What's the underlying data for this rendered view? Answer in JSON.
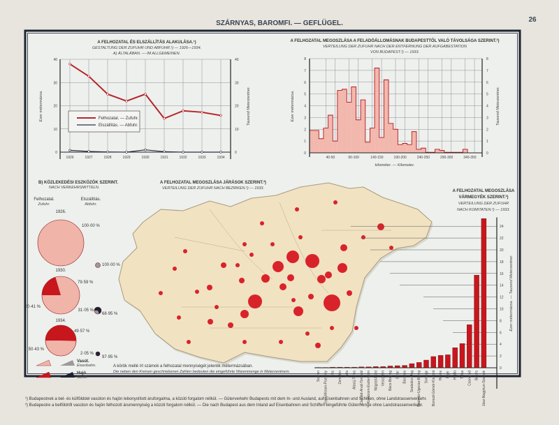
{
  "header": {
    "title": "SZÁRNYAS, BAROMFI. — GEFLÜGEL.",
    "page_number": "26"
  },
  "units": {
    "hu": "Ezer métermázsa.",
    "de": "Tausend Meterzentner."
  },
  "chart_data": [
    {
      "type": "line",
      "title": "A FELHOZATAL ÉS ELSZÁLLÍTÁS ALAKULÁSA.¹)",
      "subtitle": "GESTALTUNG DER ZUFUHR UND ABFUHR.¹) — 1926—1934.",
      "subtitle2": "A) ÁLTALÁBAN. — IM ALLGEMEINEN.",
      "x": [
        "1926",
        "1927",
        "1928",
        "1929",
        "1930",
        "1931",
        "1932",
        "1933",
        "1934"
      ],
      "yticks": [
        "0",
        "10",
        "20",
        "30",
        "40"
      ],
      "ylim": [
        0,
        40
      ],
      "ylabel": "Ezer métermázsa.",
      "ylabel_right": "Tausend Meterzentner.",
      "grid": true,
      "legend": "center-left",
      "series": [
        {
          "name": "Felhozatal. — Zufuhr.",
          "color": "#b5262a",
          "values": [
            38,
            32.7,
            25,
            22,
            25,
            14.5,
            17.8,
            17.2,
            15.8
          ]
        },
        {
          "name": "Elszállítás. — Abfuhr.",
          "color": "#2b3242",
          "values": [
            0.8,
            0.3,
            0.1,
            0,
            1.0,
            0.2,
            0,
            0,
            0
          ]
        }
      ]
    },
    {
      "type": "bar",
      "title": "A FELHOZATAL MEGOSZLÁSA A FELADÓÁLLOMÁSNAK BUDAPESTTŐL VALÓ TÁVOLSÁGA SZERINT.²)",
      "subtitle": "VERTEILUNG DER ZUFUHR NACH DER ENTFERNUNG DER AUFGABESTATION",
      "subtitle2": "VON BUDAPEST.²) — 1933.",
      "xlabel": "kilométer. — Kilometer.",
      "xticks": [
        "40-50",
        "90-100",
        "140-150",
        "190-200",
        "240-250",
        "290-300",
        "340-350"
      ],
      "bin_km": 10,
      "yticks": [
        "0",
        "1",
        "2",
        "3",
        "4",
        "5",
        "6",
        "7",
        "8"
      ],
      "ylim": [
        0,
        8
      ],
      "ylabel": "Ezer métermázsa.",
      "ylabel_right": "Tausend Meterzentner.",
      "values": [
        1.9,
        1.9,
        1.2,
        2.1,
        3.2,
        1.0,
        5.3,
        5.4,
        4.3,
        5.6,
        2.8,
        4.5,
        0.9,
        2.1,
        7.2,
        1.3,
        6.2,
        2.5,
        2.0,
        0.7,
        0.8,
        0.7,
        1.8,
        0.3,
        0.4,
        0.05,
        0.05,
        0.3,
        0.2,
        0.05,
        0.05,
        0.05,
        0.05,
        0.3,
        0
      ]
    },
    {
      "type": "pie",
      "title": "B) KÖZLEKEDÉSI ESZKÖZÖK SZERINT.",
      "subtitle": "NACH VERKEHRSMITTELN.",
      "columns": [
        {
          "hu": "Felhozatal.",
          "de": "Zufuhr."
        },
        {
          "hu": "Elszállítás.",
          "de": "Abfuhr."
        }
      ],
      "years": [
        {
          "year": "1926.",
          "zufuhr": {
            "rail": 100.0,
            "ship": 0,
            "rail_label": "100·00 %",
            "ship_label": ""
          },
          "abfuhr": {
            "rail": 100.0,
            "ship": 0,
            "rail_label": "100·00 %",
            "ship_label": ""
          }
        },
        {
          "year": "1930.",
          "zufuhr": {
            "rail": 79.59,
            "ship": 20.41,
            "rail_label": "79·59 %",
            "ship_label": "20·41 %"
          },
          "abfuhr": {
            "rail": 31.05,
            "ship": 68.95,
            "rail_label": "31·05 %",
            "ship_label": "68·95 %"
          }
        },
        {
          "year": "1934.",
          "zufuhr": {
            "rail": 49.57,
            "ship": 50.43,
            "rail_label": "49·57 %",
            "ship_label": "50·43 %"
          },
          "abfuhr": {
            "rail": 2.05,
            "ship": 97.95,
            "rail_label": "2·05 %",
            "ship_label": "97·95 %"
          }
        }
      ],
      "legend": [
        {
          "hu": "Vasút.",
          "de": "Eisenbahn."
        },
        {
          "hu": "Hajó.",
          "de": "Schiff."
        }
      ],
      "colors": {
        "zufuhr_rail": "#f0b4a8",
        "zufuhr_ship": "#c8161d",
        "abfuhr_rail": "#9a9a9a",
        "abfuhr_ship": "#1d2233"
      }
    },
    {
      "type": "bar",
      "title": "A FELHOZATAL MEGOSZLÁSA",
      "title2": "VÁRMEGYÉK SZERINT.²)",
      "subtitle": "VERTEILUNG DER ZUFUHR",
      "subtitle2": "NACH KOMITATEN.²) — 1933.",
      "ylabel": "Ezer métermázsa. — Tausend Meterzentner.",
      "yticks": [
        "0",
        "2",
        "4",
        "6",
        "8",
        "10",
        "12",
        "14",
        "16",
        "18",
        "20",
        "22",
        "24"
      ],
      "ylim": [
        0,
        26
      ],
      "categories": [
        "Sopron",
        "Győr-Moson-Pozsony",
        "Vas",
        "Zemplén",
        "Zala",
        "Abaúj-Torna",
        "Csanád-Arad-Torontál",
        "Komárom-Esztergom",
        "Nógrád-Hont",
        "Veszprém",
        "Bács-Bodrog",
        "Bihar",
        "Baranya",
        "Szabolcs-Ung",
        "Szatmár-Ugocsa-Bereg",
        "Somogy",
        "Borsod-Gömör-Kishont",
        "Heves",
        "Fejér",
        "Hajdú",
        "Tolna",
        "Csongrád",
        "Békés",
        "Jász-Nagykun-Szolnok",
        "Pest-Pilis-Solt-Kiskun"
      ],
      "values": [
        0.05,
        0.05,
        0.1,
        0.1,
        0.1,
        0.1,
        0.15,
        0.15,
        0.2,
        0.2,
        0.3,
        0.35,
        0.4,
        0.7,
        0.9,
        1.3,
        1.9,
        2.1,
        2.2,
        3.4,
        4.1,
        7.3,
        15.7,
        25.3,
        0
      ]
    }
  ],
  "map": {
    "title": "A FELHOZATAL MEGOSZLÁSA JÁRÁSOK SZERINT.²)",
    "subtitle": "VERTEILUNG DER ZUFUHR NACH BEZIRKEN.²) — 1933.",
    "caption_hu": "A körök mellé írt számok a felhozatal mennyiségét jelentik métermázsában.",
    "caption_de": "Die neben den Kreisen geschriebenen Zahlen bedeuten die eingeführte Warenmenge in Meterzentnern.",
    "colors": {
      "land": "#f1e2c2",
      "circle": "#d9232b"
    }
  },
  "footnotes": [
    "¹) Budapestnek a bel- és külfölddel vasúton és hajón lebonyolított áruforgalma, a közúti forgalom nélkül. — Güterverkehr Budapests mit dem In- und Ausland, auf Eisenbahnen und Schiffen, ohne Landstrassenverkehr.",
    "²) Budapestre a belföldről vasúton és hajón felhozott árumennyiség a közúti forgalom nélkül. — Die nach Budapest aus dem Inland auf Eisenbahnen und Schiffen eingeführte Gütermenge ohne Landstrassenverkehr."
  ]
}
